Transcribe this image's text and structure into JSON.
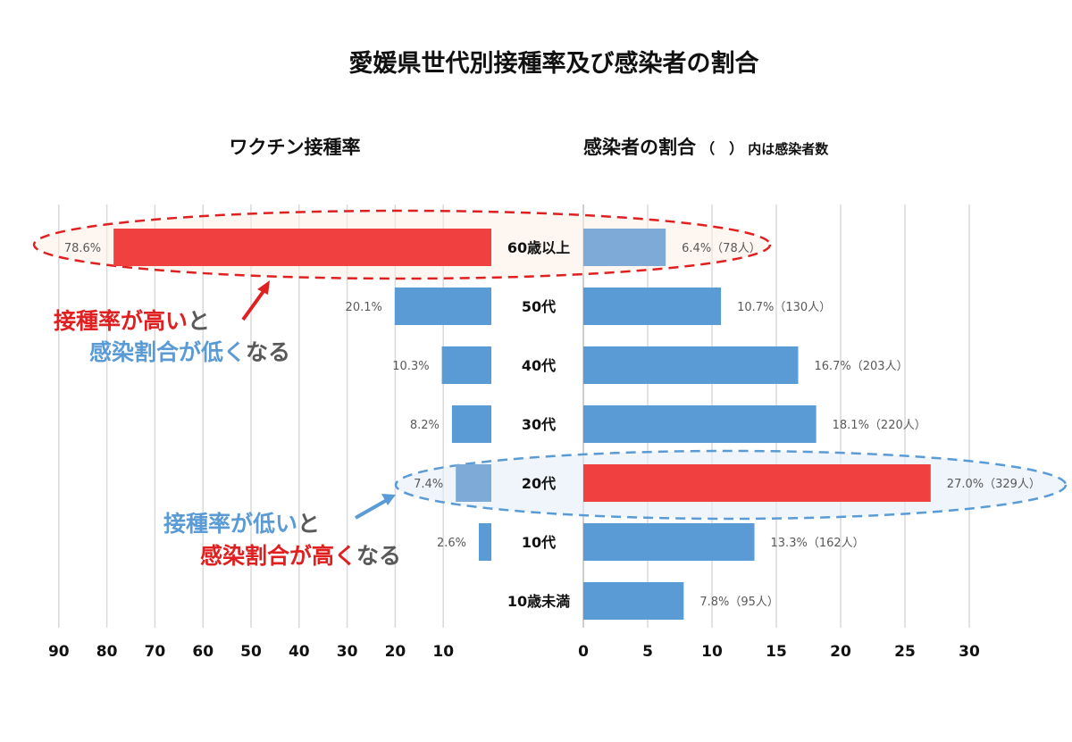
{
  "title": "愛媛県世代別接種率及び感染者の割合",
  "colors": {
    "bar_blue": "#5b9bd5",
    "bar_light_blue": "#7eaad8",
    "bar_red": "#f04040",
    "annotation_red": "#e02020",
    "annotation_blue": "#5b9bd5",
    "text_gray": "#595959",
    "grid": "#d9d9d9"
  },
  "categories": [
    "60歳以上",
    "50代",
    "40代",
    "30代",
    "20代",
    "10代",
    "10歳未満"
  ],
  "chart_data": [
    {
      "type": "bar",
      "orientation": "horizontal",
      "direction": "right-to-left",
      "title": "ワクチン接種率",
      "categories": [
        "60歳以上",
        "50代",
        "40代",
        "30代",
        "20代",
        "10代",
        "10歳未満"
      ],
      "values": [
        78.6,
        20.1,
        10.3,
        8.2,
        7.4,
        2.6,
        null
      ],
      "data_labels": [
        "78.6%",
        "20.1%",
        "10.3%",
        "8.2%",
        "7.4%",
        "2.6%",
        ""
      ],
      "highlight": {
        "60歳以上": "red",
        "20代": "light-blue"
      },
      "xlim": [
        0,
        90
      ],
      "ticks": [
        90,
        80,
        70,
        60,
        50,
        40,
        30,
        20,
        10
      ],
      "grid": true
    },
    {
      "type": "bar",
      "orientation": "horizontal",
      "title": "感染者の割合",
      "subtitle_paren": "（　）",
      "subtitle_note": "内は感染者数",
      "categories": [
        "60歳以上",
        "50代",
        "40代",
        "30代",
        "20代",
        "10代",
        "10歳未満"
      ],
      "values": [
        6.4,
        10.7,
        16.7,
        18.1,
        27.0,
        13.3,
        7.8
      ],
      "counts": [
        78,
        130,
        203,
        220,
        329,
        162,
        95
      ],
      "data_labels": [
        "6.4%（78人）",
        "10.7%（130人）",
        "16.7%（203人）",
        "18.1%（220人）",
        "27.0%（329人）",
        "13.3%（162人）",
        "7.8%（95人）"
      ],
      "highlight": {
        "60歳以上": "light-blue",
        "20代": "red"
      },
      "xlim": [
        0,
        30
      ],
      "ticks": [
        0,
        5,
        10,
        15,
        20,
        25,
        30
      ],
      "grid": true
    }
  ],
  "annotations": {
    "upper": {
      "line1_a": "接種率が高い",
      "line1_b": "と",
      "line2_a": "感染割合が低く",
      "line2_b": "なる"
    },
    "lower": {
      "line1_a": "接種率が低い",
      "line1_b": "と",
      "line2_a": "感染割合が高く",
      "line2_b": "なる"
    }
  }
}
